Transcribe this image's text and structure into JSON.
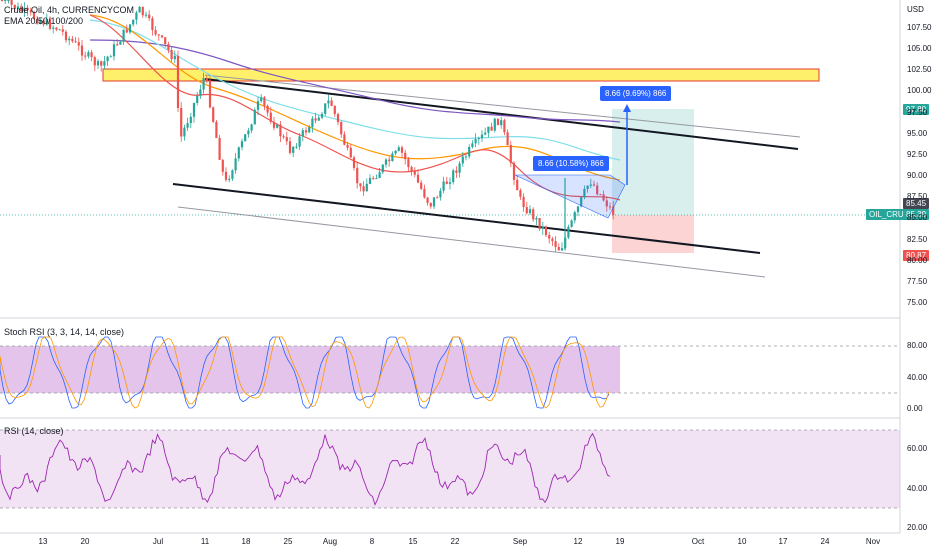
{
  "header": {
    "symbol": "Crude Oil, 4h, CURRENCYCOM",
    "indicator": "EMA 20/50/100/200"
  },
  "price_axis": {
    "currency": "USD",
    "ticks": [
      "107.50",
      "105.00",
      "102.50",
      "100.00",
      "97.50",
      "95.00",
      "92.50",
      "90.00",
      "87.50",
      "85.00",
      "82.50",
      "80.00",
      "77.50",
      "75.00"
    ],
    "tick_values": [
      107.5,
      105,
      102.5,
      100,
      97.5,
      95,
      92.5,
      90,
      87.5,
      85,
      82.5,
      80,
      77.5,
      75
    ]
  },
  "price_tags": {
    "target": "97.80",
    "last_dark": "85.45",
    "current": "85.39",
    "stop": "80.87",
    "symbol_tag": "OIL_CRUDE"
  },
  "callouts": {
    "upper": "8.66 (9.69%) 866",
    "lower": "8.66 (10.58%) 866"
  },
  "stoch": {
    "title": "Stoch RSI (3, 3, 14, 14, close)",
    "ticks": [
      "80.00",
      "40.00",
      "0.00"
    ]
  },
  "rsi": {
    "title": "RSI (14, close)",
    "ticks": [
      "60.00",
      "40.00",
      "20.00"
    ]
  },
  "time_axis": {
    "labels": [
      "13",
      "20",
      "Jul",
      "11",
      "18",
      "25",
      "Aug",
      "8",
      "15",
      "22",
      "Sep",
      "12",
      "19",
      "Oct",
      "10",
      "17",
      "24",
      "Nov"
    ]
  },
  "colors": {
    "up": "#26a69a",
    "down": "#ef5350",
    "ema20": "#ef5350",
    "ema50": "#ff9800",
    "ema100": "#80deea",
    "ema200": "#7e57c2",
    "accent": "#2962ff",
    "zone": "#ffeb3b",
    "osc_band": "#e1bee7"
  }
}
